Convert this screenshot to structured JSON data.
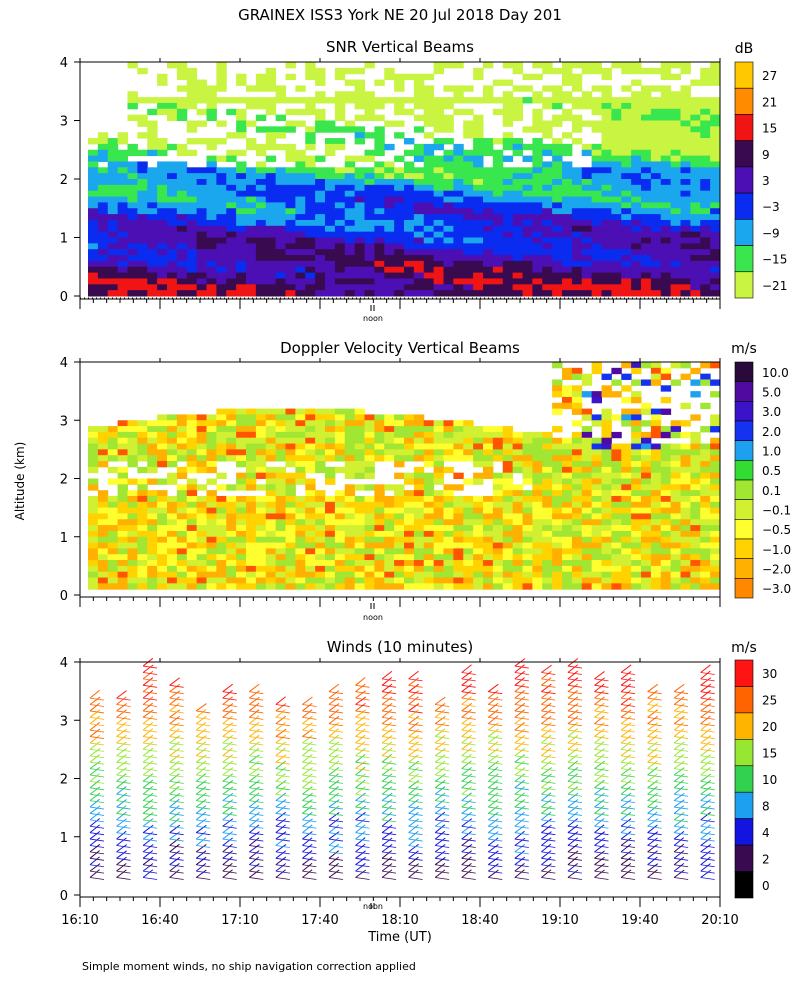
{
  "header": {
    "title": "GRAINEX ISS3 York NE  20 Jul 2018 Day 201",
    "y_axis_label": "Altitude (km)",
    "x_axis_label": "Time (UT)",
    "footer": "Simple moment winds, no ship navigation correction applied",
    "noon_marker": "noon"
  },
  "colors": {
    "snr_scale": [
      "#c9f542",
      "#39e64e",
      "#1aa7ee",
      "#0a2cf0",
      "#4b0fb4",
      "#3a0a50",
      "#f01414",
      "#ff8c00",
      "#ffc800"
    ],
    "doppler_scale": [
      "#ff1a1a",
      "#ff5500",
      "#ff8800",
      "#ffb000",
      "#ffd200",
      "#ffff30",
      "#d2f032",
      "#a0e632",
      "#32dc32",
      "#1ea0f0",
      "#1432f0",
      "#3c14c8",
      "#500aa0",
      "#2a0a3a"
    ],
    "winds_scale": [
      "#000000",
      "#3a0a50",
      "#1414e0",
      "#1ea0f0",
      "#32d250",
      "#96e632",
      "#ffb400",
      "#ff6400",
      "#ff1414"
    ]
  },
  "chart_data": [
    {
      "type": "heatmap",
      "title": "SNR Vertical Beams",
      "colorbar_unit": "dB",
      "colorbar_ticks": [
        "27",
        "21",
        "15",
        "9",
        "3",
        "−3",
        "−9",
        "−15",
        "−21"
      ],
      "ylim": [
        0,
        4
      ],
      "y_ticks": [
        "0",
        "1",
        "2",
        "3",
        "4"
      ],
      "xlim": [
        "16:10",
        "20:10"
      ],
      "description_levels": [
        -21,
        -15,
        -9,
        -3,
        3,
        9,
        15,
        21,
        27
      ],
      "rows": [
        {
          "altitude_km": 0.4,
          "snr_db": 10
        },
        {
          "altitude_km": 0.7,
          "snr_db": 6
        },
        {
          "altitude_km": 1.0,
          "snr_db": -2
        },
        {
          "altitude_km": 1.3,
          "snr_db": -6
        },
        {
          "altitude_km": 1.6,
          "snr_db": -12
        },
        {
          "altitude_km": 2.0,
          "snr_db": -15
        },
        {
          "altitude_km": 2.5,
          "snr_db": -18
        },
        {
          "altitude_km": 3.0,
          "snr_db": -20
        },
        {
          "altitude_km": 3.5,
          "snr_db": -21
        }
      ]
    },
    {
      "type": "heatmap",
      "title": "Doppler Velocity Vertical Beams",
      "colorbar_unit": "m/s",
      "colorbar_ticks": [
        "10.0",
        "5.0",
        "3.0",
        "2.0",
        "1.0",
        "0.5",
        "0.1",
        "−0.1",
        "−0.5",
        "−1.0",
        "−2.0",
        "−3.0"
      ],
      "ylim": [
        0,
        4
      ],
      "y_ticks": [
        "0",
        "1",
        "2",
        "3",
        "4"
      ],
      "xlim": [
        "16:10",
        "20:10"
      ]
    },
    {
      "type": "scatter",
      "title": "Winds (10 minutes)",
      "colorbar_unit": "m/s",
      "colorbar_ticks": [
        "30",
        "25",
        "20",
        "15",
        "10",
        "8",
        "4",
        "2",
        "0"
      ],
      "ylim": [
        0,
        4
      ],
      "y_ticks": [
        "0",
        "1",
        "2",
        "3",
        "4"
      ],
      "x_ticks": [
        "16:10",
        "16:40",
        "17:10",
        "17:40",
        "18:10",
        "18:40",
        "19:10",
        "19:40",
        "20:10"
      ],
      "xlim": [
        "16:10",
        "20:10"
      ]
    }
  ]
}
